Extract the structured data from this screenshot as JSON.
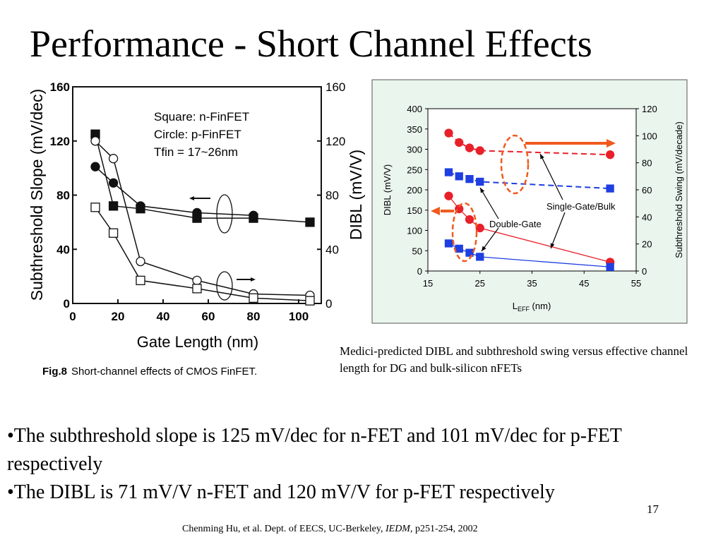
{
  "slide": {
    "title": "Performance - Short Channel Effects",
    "caption": "Medici-predicted DIBL and subthreshold swing versus effective channel length for DG and bulk-silicon nFETs",
    "bullets": [
      "•The subthreshold slope is 125 mV/dec for n-FET and 101 mV/dec for p-FET respectively",
      "•The DIBL is 71 mV/V n-FET and 120 mV/V for p-FET respectively"
    ],
    "slide_number": "17",
    "footer_prefix": "Chenming Hu, et al. Dept. of EECS, UC-Berkeley, ",
    "footer_journal": "IEDM",
    "footer_suffix": ", p251-254, 2002"
  },
  "chart_data": [
    {
      "type": "line",
      "xlabel": "Gate Length (nm)",
      "ylabel": "Subthreshold Slope (mV/dec)",
      "y2label": "DIBL (mV/V)",
      "xlim": [
        0,
        110
      ],
      "ylim": [
        0,
        160
      ],
      "y2lim": [
        0,
        160
      ],
      "xticks": [
        0,
        20,
        40,
        60,
        80,
        100
      ],
      "yticks": [
        0,
        40,
        80,
        120,
        160
      ],
      "y2ticks": [
        0,
        40,
        80,
        120,
        160
      ],
      "legend_text": [
        "Square: n-FinFET",
        "Circle:   p-FinFET",
        "Tfin = 17~26nm"
      ],
      "figure_caption_bold": "Fig.8",
      "figure_caption": "Short-channel effects of CMOS FinFET.",
      "grid": false,
      "series": [
        {
          "marker": "square",
          "filled": true,
          "axis": "left",
          "x": [
            10,
            18,
            30,
            55,
            80,
            105
          ],
          "y": [
            125,
            72,
            70,
            63,
            63,
            60
          ]
        },
        {
          "marker": "circle",
          "filled": true,
          "axis": "left",
          "x": [
            10,
            18,
            30,
            55,
            80
          ],
          "y": [
            101,
            89,
            72,
            67,
            65
          ]
        },
        {
          "marker": "circle",
          "filled": false,
          "axis": "right",
          "x": [
            10,
            18,
            30,
            55,
            80,
            105
          ],
          "y": [
            120,
            107,
            31,
            17,
            7,
            6
          ]
        },
        {
          "marker": "square",
          "filled": false,
          "axis": "right",
          "x": [
            10,
            18,
            30,
            55,
            80,
            105
          ],
          "y": [
            71,
            52,
            17,
            11,
            4,
            2
          ]
        }
      ]
    },
    {
      "type": "line",
      "xlabel_main": "L",
      "xlabel_sub": "EFF",
      "xlabel_unit": " (nm)",
      "ylabel": "DIBL (mV/V)",
      "y2label": "Subthreshold Swing (mV/decade)",
      "xlim": [
        15,
        55
      ],
      "ylim": [
        0,
        400
      ],
      "y2lim": [
        0,
        120
      ],
      "xticks": [
        15,
        25,
        35,
        45,
        55
      ],
      "yticks": [
        0,
        50,
        100,
        150,
        200,
        250,
        300,
        350,
        400
      ],
      "y2ticks": [
        0,
        20,
        40,
        60,
        80,
        100,
        120
      ],
      "annotations": [
        "Double-Gate",
        "Single-Gate/Bulk"
      ],
      "background": "#eaf5ee",
      "colors": {
        "bulk": "#e8202a",
        "double_gate": "#1f3fe0",
        "highlight": "#f05a1e"
      },
      "grid": false,
      "series": [
        {
          "device": "Single-Gate/Bulk",
          "quantity": "DIBL",
          "axis": "left",
          "style": "solid",
          "marker": "circle",
          "x": [
            19,
            21,
            23,
            25,
            50
          ],
          "y": [
            185,
            153,
            127,
            106,
            22
          ]
        },
        {
          "device": "Double-Gate",
          "quantity": "DIBL",
          "axis": "left",
          "style": "solid",
          "marker": "square",
          "x": [
            19,
            21,
            23,
            25,
            50
          ],
          "y": [
            68,
            55,
            45,
            35,
            10
          ]
        },
        {
          "device": "Single-Gate/Bulk",
          "quantity": "Subthreshold Swing",
          "axis": "right",
          "style": "dashed",
          "marker": "circle",
          "x": [
            19,
            21,
            23,
            25,
            50
          ],
          "y": [
            102,
            95,
            91,
            89,
            86
          ]
        },
        {
          "device": "Double-Gate",
          "quantity": "Subthreshold Swing",
          "axis": "right",
          "style": "dashed",
          "marker": "square",
          "x": [
            19,
            21,
            23,
            25,
            50
          ],
          "y": [
            73,
            70,
            68,
            66,
            61
          ]
        }
      ]
    }
  ]
}
